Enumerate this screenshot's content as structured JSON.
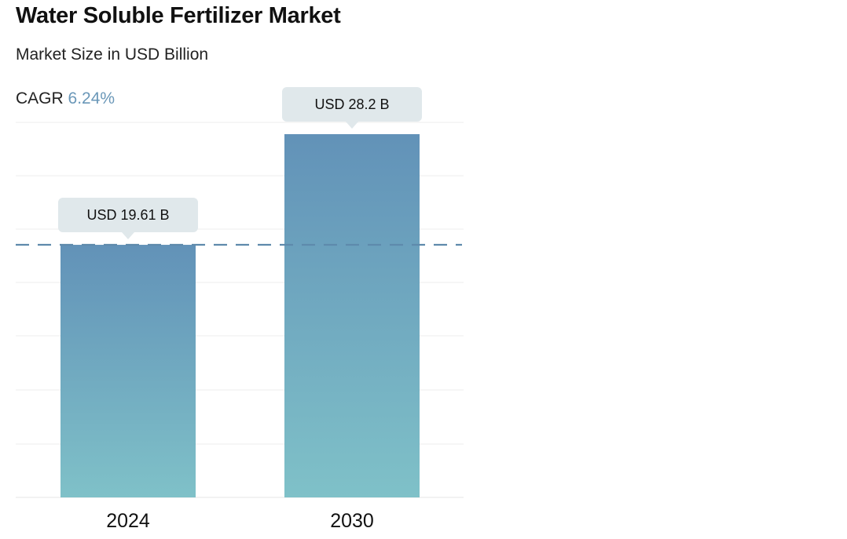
{
  "header": {
    "title": "Water Soluble Fertilizer Market",
    "subtitle": "Market Size in USD Billion",
    "cagr_label": "CAGR",
    "cagr_value": "6.24%"
  },
  "colors": {
    "bar_top": "#6292b8",
    "bar_bottom": "#7fc1c8",
    "callout_bg": "#e0e8eb",
    "reference_line": "#5e8aac",
    "cagr_accent": "#6a97b8",
    "gridline": "#eeeeee"
  },
  "chart_data": {
    "type": "bar",
    "categories": [
      "2024",
      "2030"
    ],
    "values": [
      19.61,
      28.2
    ],
    "data_labels": [
      "USD 19.61 B",
      "USD 28.2 B"
    ],
    "ylim": [
      0,
      30
    ],
    "reference_line_value": 19.61,
    "grid": true,
    "xlabel": "",
    "ylabel": ""
  }
}
